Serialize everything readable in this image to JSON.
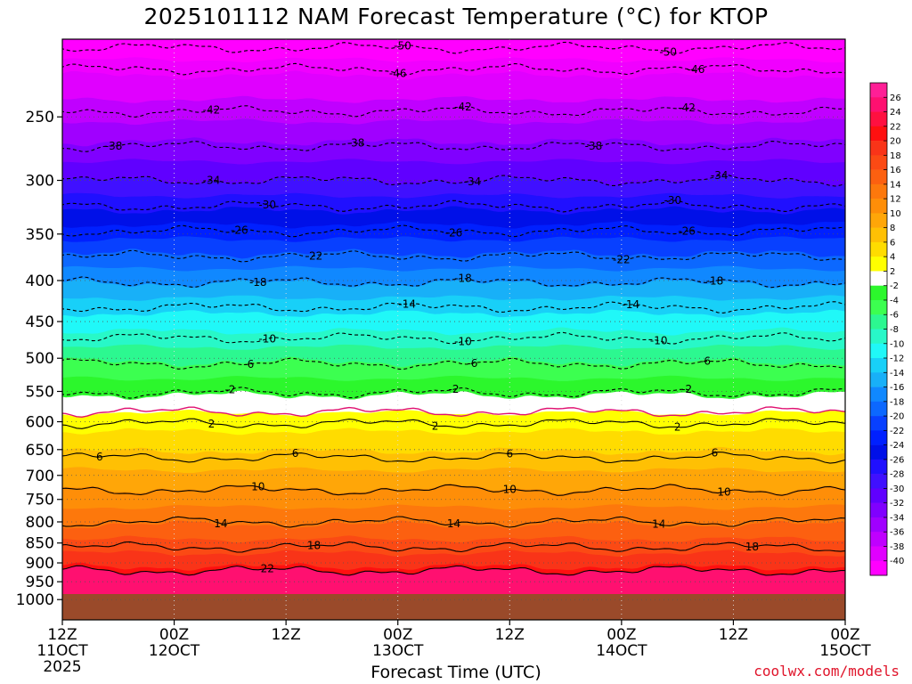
{
  "page": {
    "title": "2025101112 NAM Forecast Temperature (°C) for KTOP",
    "credit": "coolwx.com/models"
  },
  "chart_data": {
    "type": "heatmap",
    "title": "2025101112 NAM Forecast Temperature (°C) for KTOP",
    "xlabel": "Forecast Time (UTC)",
    "ylabel": "",
    "y_scale": "log",
    "y_inverted": true,
    "ylim": [
      1000,
      200
    ],
    "xlim_hours": [
      0,
      84
    ],
    "x_ticks": [
      {
        "hour": 0,
        "line1": "12Z",
        "line2": "11OCT",
        "line3": "2025"
      },
      {
        "hour": 12,
        "line1": "00Z",
        "line2": "12OCT",
        "line3": ""
      },
      {
        "hour": 24,
        "line1": "12Z",
        "line2": "",
        "line3": ""
      },
      {
        "hour": 36,
        "line1": "00Z",
        "line2": "13OCT",
        "line3": ""
      },
      {
        "hour": 48,
        "line1": "12Z",
        "line2": "",
        "line3": ""
      },
      {
        "hour": 60,
        "line1": "00Z",
        "line2": "14OCT",
        "line3": ""
      },
      {
        "hour": 72,
        "line1": "12Z",
        "line2": "",
        "line3": ""
      },
      {
        "hour": 84,
        "line1": "00Z",
        "line2": "15OCT",
        "line3": ""
      }
    ],
    "y_ticks": [
      "250",
      "300",
      "350",
      "400",
      "450",
      "500",
      "550",
      "600",
      "650",
      "700",
      "750",
      "800",
      "850",
      "900",
      "950",
      "1000"
    ],
    "grid": true,
    "colorbar": {
      "position": "right",
      "levels": [
        26,
        24,
        22,
        20,
        18,
        16,
        14,
        12,
        10,
        8,
        6,
        4,
        2,
        -2,
        -4,
        -6,
        -8,
        -10,
        -12,
        -14,
        -16,
        -18,
        -20,
        -22,
        -24,
        -26,
        -28,
        -30,
        -32,
        -34,
        -36,
        -38,
        -40
      ],
      "colors": [
        "#ff1f96",
        "#ff1070",
        "#ff1040",
        "#ff1010",
        "#f93418",
        "#fb4a14",
        "#fc6010",
        "#fd780c",
        "#fe8e08",
        "#ffa608",
        "#ffc004",
        "#ffdc00",
        "#ffff00",
        "#ffffff",
        "#2cf72c",
        "#3cff50",
        "#2cf890",
        "#28f8c8",
        "#20f8f8",
        "#18d0f8",
        "#18b0f8",
        "#1088ff",
        "#0c68ff",
        "#0840ff",
        "#0020ff",
        "#0010e8",
        "#2010ff",
        "#4010ff",
        "#6000ff",
        "#8000ff",
        "#a000ff",
        "#c000ff",
        "#e000ff",
        "#ff00ff"
      ]
    },
    "contour_labels": [
      {
        "value": "-50",
        "hours": [
          36.5,
          65
        ]
      },
      {
        "value": "-46",
        "hours": [
          36,
          68
        ]
      },
      {
        "value": "-42",
        "hours": [
          16,
          43,
          67
        ]
      },
      {
        "value": "-38",
        "hours": [
          5.5,
          31.5,
          57
        ]
      },
      {
        "value": "-34",
        "hours": [
          16,
          44,
          70.5
        ]
      },
      {
        "value": "-30",
        "hours": [
          22,
          65.5
        ]
      },
      {
        "value": "-26",
        "hours": [
          19,
          42,
          67
        ]
      },
      {
        "value": "-22",
        "hours": [
          27,
          60
        ]
      },
      {
        "value": "-18",
        "hours": [
          21,
          43,
          70
        ]
      },
      {
        "value": "-14",
        "hours": [
          37,
          61
        ]
      },
      {
        "value": "-10",
        "hours": [
          22,
          43,
          64
        ]
      },
      {
        "value": "-6",
        "hours": [
          20,
          44,
          69
        ]
      },
      {
        "value": "-2",
        "hours": [
          18,
          42,
          67
        ]
      },
      {
        "value": "2",
        "hours": [
          16,
          40,
          66
        ]
      },
      {
        "value": "6",
        "hours": [
          4,
          25,
          48,
          70
        ]
      },
      {
        "value": "10",
        "hours": [
          21,
          48,
          71
        ]
      },
      {
        "value": "14",
        "hours": [
          17,
          42,
          64
        ]
      },
      {
        "value": "18",
        "hours": [
          27,
          74
        ]
      },
      {
        "value": "22",
        "hours": [
          22
        ]
      }
    ],
    "contour_levels": [
      {
        "value": -50,
        "p": 205
      },
      {
        "value": -46,
        "p": 218
      },
      {
        "value": -42,
        "p": 246
      },
      {
        "value": -38,
        "p": 272
      },
      {
        "value": -34,
        "p": 300
      },
      {
        "value": -30,
        "p": 323
      },
      {
        "value": -26,
        "p": 347
      },
      {
        "value": -22,
        "p": 373
      },
      {
        "value": -18,
        "p": 402
      },
      {
        "value": -14,
        "p": 432
      },
      {
        "value": -10,
        "p": 472
      },
      {
        "value": -6,
        "p": 508
      },
      {
        "value": -2,
        "p": 552
      },
      {
        "value": 2,
        "p": 603
      },
      {
        "value": 6,
        "p": 665
      },
      {
        "value": 10,
        "p": 730
      },
      {
        "value": 14,
        "p": 800
      },
      {
        "value": 18,
        "p": 860
      },
      {
        "value": 22,
        "p": 920
      }
    ]
  }
}
